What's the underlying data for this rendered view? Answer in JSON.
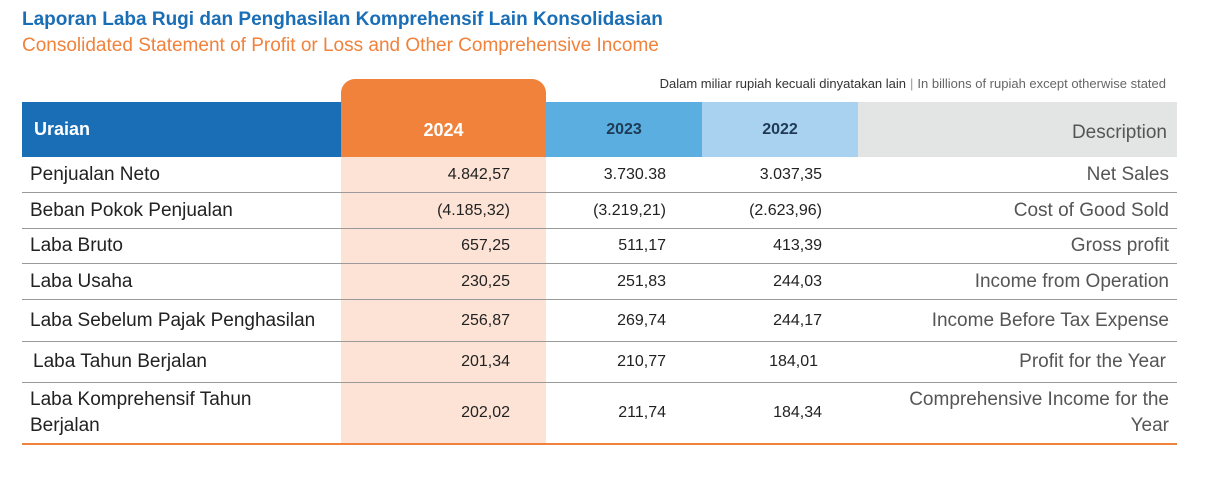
{
  "title_id": "Laporan Laba Rugi dan Penghasilan Komprehensif Lain Konsolidasian",
  "title_en": "Consolidated Statement of Profit or Loss and Other Comprehensive Income",
  "unit_note_id": "Dalam miliar rupiah kecuali dinyatakan lain",
  "unit_note_sep": "|",
  "unit_note_en": "In billions of rupiah except otherwise stated",
  "header": {
    "uraian": "Uraian",
    "y2024": "2024",
    "y2023": "2023",
    "y2022": "2022",
    "description": "Description"
  },
  "colors": {
    "blue": "#1a6eb5",
    "orange": "#f0823c",
    "light_orange": "#fde3d6",
    "mid_blue": "#5aaee0",
    "light_blue": "#a9d2f0"
  },
  "rows": [
    {
      "label": "Penjualan Neto",
      "v2024": "4.842,57",
      "v2023": "3.730.38",
      "v2022": "3.037,35",
      "desc": "Net Sales"
    },
    {
      "label": "Beban Pokok Penjualan",
      "v2024": "(4.185,32)",
      "v2023": "(3.219,21)",
      "v2022": "(2.623,96)",
      "desc": "Cost of Good Sold"
    },
    {
      "label": "Laba Bruto",
      "v2024": "657,25",
      "v2023": "511,17",
      "v2022": "413,39",
      "desc": "Gross profit"
    },
    {
      "label": "Laba Usaha",
      "v2024": "230,25",
      "v2023": "251,83",
      "v2022": "244,03",
      "desc": "Income from Operation"
    },
    {
      "label": "Laba Sebelum Pajak Penghasilan",
      "v2024": "256,87",
      "v2023": "269,74",
      "v2022": "244,17",
      "desc": "Income Before Tax Expense"
    },
    {
      "label": "Laba Tahun Berjalan",
      "v2024": "201,34",
      "v2023": "210,77",
      "v2022": "184,01",
      "desc": "Profit for the Year"
    },
    {
      "label": "Laba Komprehensif Tahun Berjalan",
      "v2024": "202,02",
      "v2023": "211,74",
      "v2022": "184,34",
      "desc": "Comprehensive Income for the Year"
    }
  ]
}
